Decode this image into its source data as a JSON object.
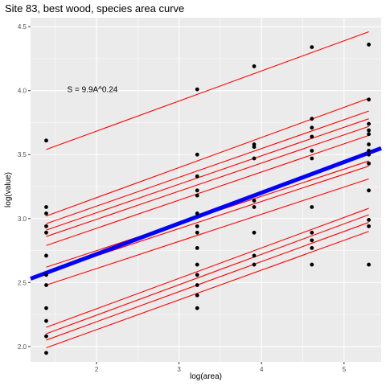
{
  "chart_data": {
    "type": "scatter",
    "title": "Site 83, best wood, species area curve",
    "xlabel": "log(area)",
    "ylabel": "log(value)",
    "xlim": [
      1.2,
      5.45
    ],
    "ylim": [
      1.88,
      4.57
    ],
    "x_ticks": [
      2,
      3,
      4,
      5
    ],
    "y_ticks": [
      2.0,
      2.5,
      3.0,
      3.5,
      4.0,
      4.5
    ],
    "y_tick_labels": [
      "2.0",
      "2.5",
      "3.0",
      "3.5",
      "4.0",
      "4.5"
    ],
    "x_tick_labels": [
      "2",
      "3",
      "4",
      "5"
    ],
    "grid": true,
    "background": "#ebebeb",
    "annotation": {
      "text": "S = 9.9A^0.24",
      "x": 1.95,
      "y": 3.99
    },
    "points": [
      {
        "x": 1.39,
        "y": 3.61
      },
      {
        "x": 1.39,
        "y": 3.09
      },
      {
        "x": 1.39,
        "y": 3.04
      },
      {
        "x": 1.39,
        "y": 2.94
      },
      {
        "x": 1.39,
        "y": 2.89
      },
      {
        "x": 1.39,
        "y": 2.71
      },
      {
        "x": 1.39,
        "y": 2.56
      },
      {
        "x": 1.39,
        "y": 2.48
      },
      {
        "x": 1.39,
        "y": 2.3
      },
      {
        "x": 1.39,
        "y": 2.2
      },
      {
        "x": 1.39,
        "y": 2.08
      },
      {
        "x": 1.39,
        "y": 1.95
      },
      {
        "x": 3.22,
        "y": 4.01
      },
      {
        "x": 3.22,
        "y": 3.5
      },
      {
        "x": 3.22,
        "y": 3.33
      },
      {
        "x": 3.22,
        "y": 3.22
      },
      {
        "x": 3.22,
        "y": 3.18
      },
      {
        "x": 3.22,
        "y": 3.04
      },
      {
        "x": 3.22,
        "y": 2.94
      },
      {
        "x": 3.22,
        "y": 2.89
      },
      {
        "x": 3.22,
        "y": 2.77
      },
      {
        "x": 3.22,
        "y": 2.64
      },
      {
        "x": 3.22,
        "y": 2.56
      },
      {
        "x": 3.22,
        "y": 2.48
      },
      {
        "x": 3.22,
        "y": 2.4
      },
      {
        "x": 3.22,
        "y": 2.3
      },
      {
        "x": 3.91,
        "y": 4.19
      },
      {
        "x": 3.91,
        "y": 3.58
      },
      {
        "x": 3.91,
        "y": 3.56
      },
      {
        "x": 3.91,
        "y": 3.47
      },
      {
        "x": 3.91,
        "y": 3.14
      },
      {
        "x": 3.91,
        "y": 3.09
      },
      {
        "x": 3.91,
        "y": 2.89
      },
      {
        "x": 3.91,
        "y": 2.71
      },
      {
        "x": 3.91,
        "y": 2.64
      },
      {
        "x": 4.61,
        "y": 4.34
      },
      {
        "x": 4.61,
        "y": 3.78
      },
      {
        "x": 4.61,
        "y": 3.71
      },
      {
        "x": 4.61,
        "y": 3.64
      },
      {
        "x": 4.61,
        "y": 3.53
      },
      {
        "x": 4.61,
        "y": 3.47
      },
      {
        "x": 4.61,
        "y": 3.09
      },
      {
        "x": 4.61,
        "y": 2.89
      },
      {
        "x": 4.61,
        "y": 2.83
      },
      {
        "x": 4.61,
        "y": 2.77
      },
      {
        "x": 4.61,
        "y": 2.64
      },
      {
        "x": 5.3,
        "y": 4.36
      },
      {
        "x": 5.3,
        "y": 3.93
      },
      {
        "x": 5.3,
        "y": 3.74
      },
      {
        "x": 5.3,
        "y": 3.69
      },
      {
        "x": 5.3,
        "y": 3.66
      },
      {
        "x": 5.3,
        "y": 3.58
      },
      {
        "x": 5.3,
        "y": 3.53
      },
      {
        "x": 5.3,
        "y": 3.5
      },
      {
        "x": 5.3,
        "y": 3.43
      },
      {
        "x": 5.3,
        "y": 3.22
      },
      {
        "x": 5.3,
        "y": 2.99
      },
      {
        "x": 5.3,
        "y": 2.94
      },
      {
        "x": 5.3,
        "y": 2.64
      }
    ],
    "red_lines": [
      {
        "x": [
          1.39,
          5.3
        ],
        "y": [
          3.54,
          4.46
        ]
      },
      {
        "x": [
          1.39,
          5.3
        ],
        "y": [
          3.02,
          3.94
        ]
      },
      {
        "x": [
          1.39,
          5.3
        ],
        "y": [
          2.96,
          3.84
        ]
      },
      {
        "x": [
          1.39,
          5.3
        ],
        "y": [
          2.91,
          3.78
        ]
      },
      {
        "x": [
          1.39,
          5.3
        ],
        "y": [
          2.86,
          3.72
        ]
      },
      {
        "x": [
          1.39,
          5.3
        ],
        "y": [
          2.79,
          3.65
        ]
      },
      {
        "x": [
          1.39,
          5.3
        ],
        "y": [
          2.62,
          3.45
        ]
      },
      {
        "x": [
          1.39,
          5.3
        ],
        "y": [
          2.58,
          3.41
        ]
      },
      {
        "x": [
          1.39,
          5.3
        ],
        "y": [
          2.48,
          3.31
        ]
      },
      {
        "x": [
          1.39,
          5.3
        ],
        "y": [
          2.15,
          3.08
        ]
      },
      {
        "x": [
          1.39,
          5.3
        ],
        "y": [
          2.1,
          3.03
        ]
      },
      {
        "x": [
          1.39,
          5.3
        ],
        "y": [
          2.05,
          2.97
        ]
      },
      {
        "x": [
          1.39,
          5.3
        ],
        "y": [
          1.99,
          2.9
        ]
      }
    ],
    "fit_line": {
      "x": [
        1.2,
        5.45
      ],
      "y": [
        2.53,
        3.55
      ]
    },
    "colors": {
      "points": "#000000",
      "red_lines": "#ff0000",
      "fit_line": "#0000ff",
      "grid": "#ffffff"
    }
  }
}
